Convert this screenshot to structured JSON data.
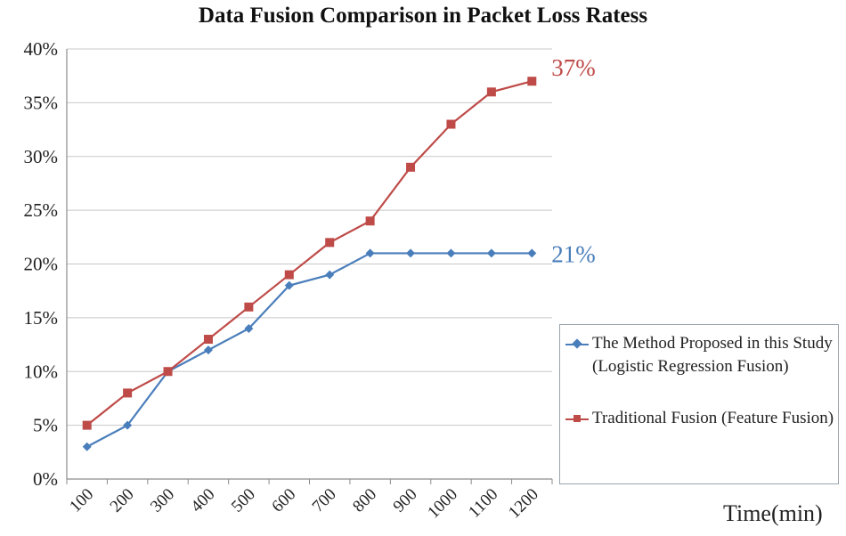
{
  "chart_data": {
    "type": "line",
    "title": "Data Fusion Comparison in Packet Loss Ratess",
    "xlabel": "Time(min)",
    "ylabel": "",
    "categories": [
      "100",
      "200",
      "300",
      "400",
      "500",
      "600",
      "700",
      "800",
      "900",
      "1000",
      "1100",
      "1200"
    ],
    "yticks": [
      "0%",
      "5%",
      "10%",
      "15%",
      "20%",
      "25%",
      "30%",
      "35%",
      "40%"
    ],
    "ylim": [
      0,
      40
    ],
    "grid": true,
    "legend_position": "right",
    "series": [
      {
        "name": "The Method Proposed in this Study (Logistic Regression Fusion)",
        "color": "#4a7ebb",
        "marker": "diamond",
        "values": [
          3,
          5,
          10,
          12,
          14,
          18,
          19,
          21,
          21,
          21,
          21,
          21
        ],
        "end_label": "21%"
      },
      {
        "name": "Traditional Fusion (Feature Fusion)",
        "color": "#be4b48",
        "marker": "square",
        "values": [
          5,
          8,
          10,
          13,
          16,
          19,
          22,
          24,
          29,
          33,
          36,
          37
        ],
        "end_label": "37%"
      }
    ]
  }
}
